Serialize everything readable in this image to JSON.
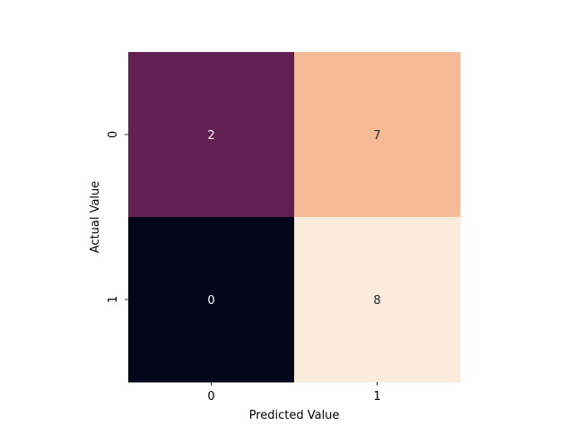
{
  "chart_data": {
    "type": "heatmap",
    "title": "",
    "xlabel": "Predicted Value",
    "ylabel": "Actual Value",
    "x_categories": [
      "0",
      "1"
    ],
    "y_categories": [
      "0",
      "1"
    ],
    "values": [
      [
        2,
        7
      ],
      [
        0,
        8
      ]
    ],
    "cell_labels": [
      [
        "2",
        "7"
      ],
      [
        "0",
        "8"
      ]
    ],
    "cell_colors": [
      [
        "#621f52",
        "#f5bb96"
      ],
      [
        "#03051a",
        "#faebdd"
      ]
    ],
    "cell_label_colors": [
      [
        "#ffffff",
        "#262626"
      ],
      [
        "#ffffff",
        "#262626"
      ]
    ],
    "colorbar": false,
    "grid": false
  }
}
